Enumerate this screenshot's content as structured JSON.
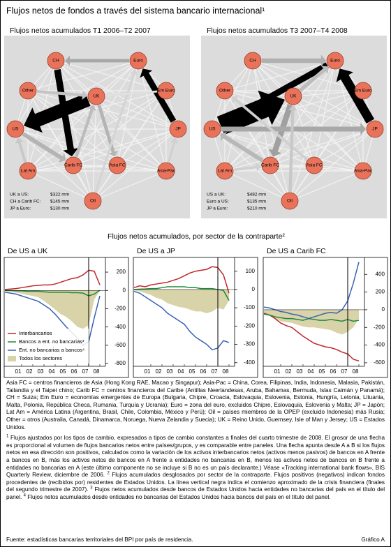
{
  "title": "Flujos netos de fondos a través del sistema bancario internacional¹",
  "section_title": "Flujos netos acumulados, por sector de la contraparte²",
  "chart_data": [
    {
      "type": "network",
      "title": "Flujos netos acumulados T1 2006–T2 2007",
      "node_color": "#e8735a",
      "nodes": [
        "CH",
        "Euro",
        "Other",
        "UK",
        "Em Euro",
        "US",
        "JP",
        "Lat Am",
        "Carib FC",
        "Asia FC",
        "Asia-Pac",
        "Oil"
      ],
      "edges": [
        {
          "from": 3,
          "to": 5,
          "value": 322,
          "color": "#000000"
        },
        {
          "from": 0,
          "to": 8,
          "value": 145,
          "color": "#000000"
        },
        {
          "from": 6,
          "to": 1,
          "value": 130,
          "color": "#000000"
        },
        {
          "from": 1,
          "to": 0,
          "value": 60,
          "color": "#a8a8a8"
        },
        {
          "from": 5,
          "to": 8,
          "value": 80,
          "color": "#b4b4b4"
        },
        {
          "from": 2,
          "to": 3,
          "value": 50,
          "color": "#c4c4c4"
        },
        {
          "from": 3,
          "to": 9,
          "value": 60,
          "color": "#b4b4b4"
        },
        {
          "from": 7,
          "to": 5,
          "value": 40,
          "color": "#c8c8c8"
        },
        {
          "from": 11,
          "to": 1,
          "value": 30,
          "color": "#d4d4d4"
        },
        {
          "from": 8,
          "to": 3,
          "value": 50,
          "color": "#bcbcbc"
        },
        {
          "from": 4,
          "to": 3,
          "value": 25,
          "color": "#e0e0e0"
        },
        {
          "from": 10,
          "to": 6,
          "value": 30,
          "color": "#d0d0d0"
        }
      ],
      "annotations": [
        {
          "label": "UK a US:",
          "amount": "$322 mm"
        },
        {
          "label": "CH a Carib FC:",
          "amount": "$145 mm"
        },
        {
          "label": "JP a Euro:",
          "amount": "$130 mm"
        }
      ]
    },
    {
      "type": "network",
      "title": "Flujos netos acumulados T3 2007–T4 2008",
      "node_color": "#e8735a",
      "nodes": [
        "CH",
        "Euro",
        "Other",
        "UK",
        "Em Euro",
        "US",
        "JP",
        "Lat Am",
        "Carib FC",
        "Asia FC",
        "Asia-Pac",
        "Oil"
      ],
      "edges": [
        {
          "from": 5,
          "to": 3,
          "value": 482,
          "color": "#000000"
        },
        {
          "from": 1,
          "to": 5,
          "value": 135,
          "color": "#000000"
        },
        {
          "from": 6,
          "to": 1,
          "value": 210,
          "color": "#000000"
        },
        {
          "from": 3,
          "to": 8,
          "value": 120,
          "color": "#a0a0a0"
        },
        {
          "from": 5,
          "to": 6,
          "value": 100,
          "color": "#a8a8a8"
        },
        {
          "from": 0,
          "to": 1,
          "value": 90,
          "color": "#b0b0b0"
        },
        {
          "from": 8,
          "to": 5,
          "value": 80,
          "color": "#b8b8b8"
        },
        {
          "from": 3,
          "to": 1,
          "value": 70,
          "color": "#bcbcbc"
        },
        {
          "from": 9,
          "to": 2,
          "value": 40,
          "color": "#d0d0d0"
        },
        {
          "from": 7,
          "to": 8,
          "value": 40,
          "color": "#d0d0d0"
        },
        {
          "from": 11,
          "to": 3,
          "value": 50,
          "color": "#c8c8c8"
        }
      ],
      "annotations": [
        {
          "label": "US a UK:",
          "amount": "$482 mm"
        },
        {
          "label": "Euro a US:",
          "amount": "$135 mm"
        },
        {
          "label": "JP a Euro:",
          "amount": "$210 mm"
        }
      ]
    },
    {
      "type": "line",
      "title": "De US a UK",
      "legend": "lower left",
      "vline": 2007.5,
      "x": [
        2000,
        2000.5,
        2001,
        2001.5,
        2002,
        2002.5,
        2003,
        2003.5,
        2004,
        2004.5,
        2005,
        2005.5,
        2006,
        2006.5,
        2007,
        2007.5,
        2008,
        2008.5
      ],
      "xlim": [
        2000,
        2009
      ],
      "xticks": [
        {
          "value": 2001.5,
          "label": "01"
        },
        {
          "value": 2002.5,
          "label": "02"
        },
        {
          "value": 2003.5,
          "label": "03"
        },
        {
          "value": 2004.5,
          "label": "04"
        },
        {
          "value": 2005.5,
          "label": "05"
        },
        {
          "value": 2006.5,
          "label": "06"
        },
        {
          "value": 2007.5,
          "label": "07"
        },
        {
          "value": 2008.5,
          "label": "08"
        }
      ],
      "ylim": [
        -830,
        330
      ],
      "yticks": [
        200,
        0,
        -200,
        -400,
        -600,
        -800
      ],
      "series": [
        {
          "name": "Interbancarios",
          "color": "#c0272d",
          "values": [
            10,
            15,
            20,
            30,
            40,
            50,
            55,
            60,
            60,
            70,
            90,
            110,
            130,
            140,
            170,
            220,
            210,
            60
          ]
        },
        {
          "name": "Bancos a ent. no bancarias³",
          "color": "#1e8a3c",
          "values": [
            0,
            0,
            -5,
            -5,
            -10,
            -10,
            -10,
            -15,
            -20,
            -20,
            -20,
            -20,
            -25,
            -25,
            -30,
            -60,
            -40,
            0
          ]
        },
        {
          "name": "Ent. no bancarias a bancos⁴",
          "color": "#3a62b5",
          "values": [
            -20,
            -30,
            -40,
            -60,
            -80,
            -100,
            -120,
            -160,
            -200,
            -260,
            -330,
            -400,
            -460,
            -520,
            -600,
            -560,
            -300,
            -60
          ]
        },
        {
          "name": "Todos los sectores",
          "color": "#d9d3a9",
          "area": true,
          "values": [
            -10,
            -15,
            -25,
            -35,
            -50,
            -60,
            -75,
            -115,
            -160,
            -210,
            -260,
            -290,
            -340,
            -400,
            -420,
            -380,
            -100,
            0
          ]
        }
      ]
    },
    {
      "type": "line",
      "title": "De US a JP",
      "vline": 2007.5,
      "x": [
        2000,
        2000.5,
        2001,
        2001.5,
        2002,
        2002.5,
        2003,
        2003.5,
        2004,
        2004.5,
        2005,
        2005.5,
        2006,
        2006.5,
        2007,
        2007.5,
        2008,
        2008.5
      ],
      "xlim": [
        2000,
        2009
      ],
      "xticks": [
        {
          "value": 2001.5,
          "label": "01"
        },
        {
          "value": 2002.5,
          "label": "02"
        },
        {
          "value": 2003.5,
          "label": "03"
        },
        {
          "value": 2004.5,
          "label": "04"
        },
        {
          "value": 2005.5,
          "label": "05"
        },
        {
          "value": 2006.5,
          "label": "06"
        },
        {
          "value": 2007.5,
          "label": "07"
        },
        {
          "value": 2008.5,
          "label": "08"
        }
      ],
      "ylim": [
        -420,
        160
      ],
      "yticks": [
        100,
        0,
        -100,
        -200,
        -300,
        -400
      ],
      "series": [
        {
          "color": "#c0272d",
          "values": [
            10,
            20,
            15,
            25,
            30,
            35,
            40,
            50,
            60,
            75,
            90,
            100,
            105,
            110,
            125,
            120,
            80,
            -20
          ]
        },
        {
          "color": "#1e8a3c",
          "values": [
            0,
            2,
            3,
            5,
            5,
            10,
            15,
            15,
            15,
            15,
            10,
            10,
            5,
            5,
            5,
            0,
            -5,
            -60
          ]
        },
        {
          "color": "#3a62b5",
          "values": [
            -10,
            -20,
            -40,
            -60,
            -80,
            -100,
            -130,
            -150,
            -170,
            -190,
            -230,
            -260,
            -280,
            -300,
            -330,
            -320,
            -280,
            -290
          ]
        },
        {
          "color": "#d9d3a9",
          "area": true,
          "values": [
            -5,
            -10,
            -20,
            -30,
            -45,
            -55,
            -75,
            -85,
            -95,
            -100,
            -110,
            -120,
            -120,
            -130,
            -120,
            -100,
            -110,
            -60
          ]
        }
      ]
    },
    {
      "type": "line",
      "title": "De US a Carib FC",
      "vline": 2007.5,
      "x": [
        2000,
        2000.5,
        2001,
        2001.5,
        2002,
        2002.5,
        2003,
        2003.5,
        2004,
        2004.5,
        2005,
        2005.5,
        2006,
        2006.5,
        2007,
        2007.5,
        2008,
        2008.5
      ],
      "xlim": [
        2000,
        2009
      ],
      "xticks": [
        {
          "value": 2001.5,
          "label": "01"
        },
        {
          "value": 2002.5,
          "label": "02"
        },
        {
          "value": 2003.5,
          "label": "03"
        },
        {
          "value": 2004.5,
          "label": "04"
        },
        {
          "value": 2005.5,
          "label": "05"
        },
        {
          "value": 2006.5,
          "label": "06"
        },
        {
          "value": 2007.5,
          "label": "07"
        },
        {
          "value": 2008.5,
          "label": "08"
        }
      ],
      "ylim": [
        -640,
        560
      ],
      "yticks": [
        400,
        200,
        0,
        -200,
        -400,
        -600
      ],
      "series": [
        {
          "color": "#c0272d",
          "values": [
            -40,
            -60,
            -100,
            -150,
            -180,
            -200,
            -250,
            -300,
            -340,
            -380,
            -400,
            -420,
            -430,
            -450,
            -480,
            -500,
            -560,
            -580
          ]
        },
        {
          "color": "#1e8a3c",
          "values": [
            -50,
            -60,
            -80,
            -90,
            -100,
            -100,
            -110,
            -120,
            -100,
            -110,
            -120,
            -120,
            -110,
            -120,
            -130,
            -110,
            -130,
            -120
          ]
        },
        {
          "color": "#3a62b5",
          "values": [
            30,
            20,
            0,
            -20,
            -30,
            -50,
            -60,
            -80,
            -100,
            -80,
            -60,
            -40,
            -30,
            -40,
            0,
            100,
            300,
            540
          ]
        },
        {
          "color": "#d9d3a9",
          "area": true,
          "values": [
            -50,
            -70,
            -100,
            -130,
            -140,
            -150,
            -170,
            -190,
            -200,
            -200,
            -210,
            -220,
            -230,
            -260,
            -280,
            -250,
            -200,
            -100
          ]
        }
      ]
    }
  ],
  "glossary": "Asia FC = centros financieros de Asia (Hong Kong RAE, Macao y Singapur); Asia-Pac = China, Corea, Filipinas, India, Indonesia, Malasia, Pakistán, Tailandia y el Taipei chino; Carib FC = centros financieros del Caribe (Antillas Neerlandesas, Aruba, Bahamas, Bermuda, Islas Caimán y Panamá); CH = Suiza; Em Euro = economías emergentes de Europa (Bulgaria, Chipre, Croacia, Eslovaquia, Eslovenia, Estonia, Hungría, Letonia, Lituania, Malta, Polonia, República Checa, Rumania, Turquía y Ucrania); Euro = zona del euro, excluidos Chipre, Eslovaquia, Eslovenia y Malta; JP = Japón; Lat Am = América Latina (Argentina, Brasil, Chile, Colombia, México y Perú); Oil = países miembros de la OPEP (excluido Indonesia) más Rusia; Other = otros (Australia, Canadá, Dinamarca, Noruega, Nueva Zelandia y Suecia); UK = Reino Unido, Guernsey, Isle of Man y Jersey; US = Estados Unidos.",
  "footnotes": [
    {
      "mark": "1",
      "text": "Flujos ajustados por los tipos de cambio, expresados a tipos de cambio constantes a finales del cuarto trimestre de 2008. El grosor de una flecha es proporcional al volumen de flujos bancarios netos entre países/grupos, y es comparable entre paneles. Una flecha apunta desde A a B si los flujos netos en esa dirección son positivos, calculados como la variación de los activos interbancarios netos (activos menos pasivos) de bancos en A frente a bancos en B, más los activos netos de bancos en A frente a entidades no bancarias en B, menos los activos netos de bancos en B frente a entidades no bancarias en A (este último componente no se incluye si B no es un país declarante.) Véase «Tracking international bank flows», BIS Quarterly Review, diciembre de 2006."
    },
    {
      "mark": "2",
      "text": "Flujos acumulados desglosados por sector de la contraparte. Flujos positivos (negativos) indican fondos procedentes de (recibidos por) residentes de Estados Unidos. La línea vertical negra indica el comienzo aproximado de la crisis financiera (finales del segundo trimestre de 2007)."
    },
    {
      "mark": "3",
      "text": "Flujos netos acumulados desde bancos de Estados Unidos hacia entidades no bancarias del país en el título del panel."
    },
    {
      "mark": "4",
      "text": "Flujos netos acumulados desde entidades no bancarias del Estados Unidos hacia bancos del país en el título del panel."
    }
  ],
  "source": "Fuente: estadísticas bancarias territoriales del BPI por país de residencia.",
  "figure_label": "Gráfico A"
}
